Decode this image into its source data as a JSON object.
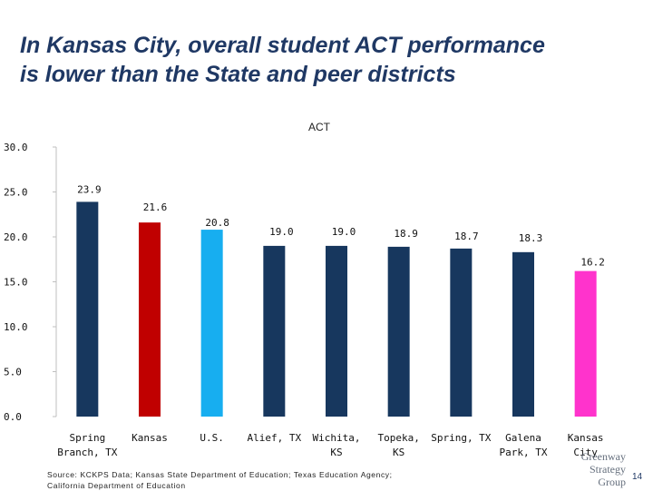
{
  "slide": {
    "title_line1": "In Kansas City, overall student ACT performance",
    "title_line2": "is lower than the State and peer districts",
    "source_line1": "Source: KCKPS Data; Kansas State Department of Education; Texas Education Agency;",
    "source_line2": "California Department of Education",
    "logo_line1": "Greenway",
    "logo_line2": "Strategy",
    "logo_line3": "Group",
    "page_number": "14"
  },
  "chart_data": {
    "type": "bar",
    "title": "ACT",
    "xlabel": "",
    "ylabel": "",
    "ylim": [
      0,
      30
    ],
    "yticks": [
      "0.0",
      "5.0",
      "10.0",
      "15.0",
      "20.0",
      "25.0",
      "30.0"
    ],
    "grid": false,
    "categories": [
      [
        "Spring",
        "Branch, TX"
      ],
      [
        "Kansas"
      ],
      [
        "U.S."
      ],
      [
        "Alief, TX"
      ],
      [
        "Wichita,",
        "KS"
      ],
      [
        "Topeka,",
        "KS"
      ],
      [
        "Spring, TX"
      ],
      [
        "Galena",
        "Park, TX"
      ],
      [
        "Kansas",
        "City"
      ]
    ],
    "values": [
      23.9,
      21.6,
      20.8,
      19.0,
      19.0,
      18.9,
      18.7,
      18.3,
      16.2
    ],
    "labels": [
      "23.9",
      "21.6",
      "20.8",
      "19.0",
      "19.0",
      "18.9",
      "18.7",
      "18.3",
      "16.2"
    ],
    "colors": [
      "#17375e",
      "#c00000",
      "#17aef0",
      "#17375e",
      "#17375e",
      "#17375e",
      "#17375e",
      "#17375e",
      "#ff33cc"
    ]
  }
}
